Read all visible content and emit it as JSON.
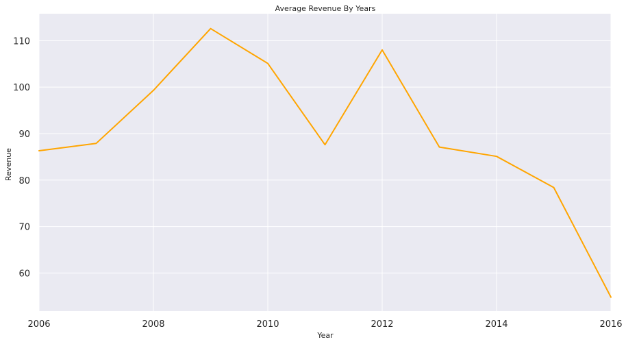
{
  "chart_data": {
    "type": "line",
    "title": "Average Revenue By Years",
    "xlabel": "Year",
    "ylabel": "Revenue",
    "x": [
      2006,
      2007,
      2008,
      2009,
      2010,
      2011,
      2012,
      2013,
      2014,
      2015,
      2016
    ],
    "series": [
      {
        "values": [
          86.3,
          87.9,
          99.3,
          112.6,
          105.1,
          87.6,
          108.0,
          87.1,
          85.1,
          78.4,
          54.8
        ],
        "color": "#ffa500"
      }
    ],
    "xlim": [
      2006,
      2016
    ],
    "ylim": [
      51.8,
      115.8
    ],
    "xticks": [
      2006,
      2008,
      2010,
      2012,
      2014,
      2016
    ],
    "yticks": [
      60,
      70,
      80,
      90,
      100,
      110
    ],
    "grid": true,
    "background": "#eaeaf2",
    "gridcolor": "#ffffff"
  }
}
